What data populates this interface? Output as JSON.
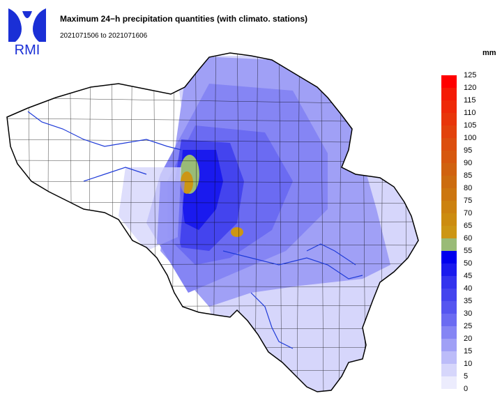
{
  "header": {
    "logo_text": "RMI",
    "title": "Maximum 24−h precipitation quantities (with climato. stations)",
    "period": "2021071506 to 2021071606"
  },
  "legend": {
    "unit": "mm",
    "ticks": [
      "125",
      "120",
      "115",
      "110",
      "105",
      "100",
      "95",
      "90",
      "85",
      "80",
      "75",
      "70",
      "65",
      "60",
      "55",
      "50",
      "45",
      "40",
      "35",
      "30",
      "25",
      "20",
      "15",
      "10",
      "5",
      "0"
    ],
    "colors": [
      "#ff0000",
      "#f41a05",
      "#ee2a08",
      "#e8360a",
      "#e2420c",
      "#dc4e0e",
      "#d6580f",
      "#d06210",
      "#cc6c10",
      "#cc7610",
      "#cc8210",
      "#cc8c10",
      "#cc9614",
      "#99bb77",
      "#0000ee",
      "#1a1aee",
      "#3333ee",
      "#4444ee",
      "#5555f0",
      "#6b6bf2",
      "#8585f4",
      "#a0a0f6",
      "#bcbcf9",
      "#d6d6fb",
      "#ececfd"
    ]
  },
  "map": {
    "region": "Belgium"
  }
}
